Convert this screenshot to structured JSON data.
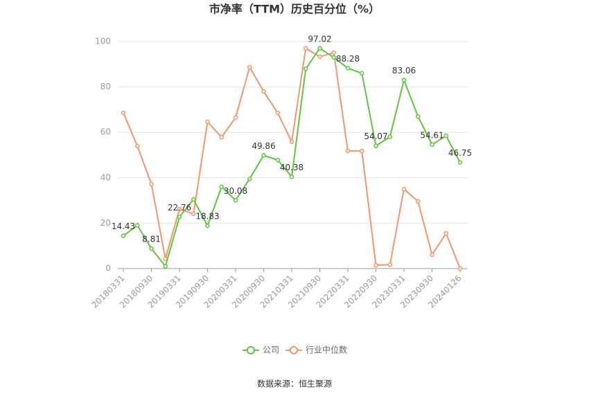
{
  "chart_data": {
    "type": "line",
    "title": "市净率（TTM）历史百分位（%）",
    "source": "数据来源：恒生聚源",
    "categories": [
      "20180331",
      null,
      "20180930",
      null,
      "20190331",
      null,
      "20190930",
      null,
      "20200331",
      null,
      "20200930",
      null,
      "20210331",
      null,
      "20210930",
      null,
      "20220331",
      null,
      "20220930",
      null,
      "20230331",
      null,
      "20230930",
      null,
      "20240126"
    ],
    "series": [
      {
        "name": "公司",
        "color": "#5cc73b",
        "values": [
          14.43,
          19,
          8.81,
          1,
          22.76,
          30.5,
          18.83,
          36,
          30.08,
          39.5,
          49.86,
          47.8,
          40.38,
          88,
          97.02,
          93,
          88.28,
          86,
          54.07,
          58,
          83.06,
          67,
          54.61,
          58.5,
          46.75
        ],
        "value_labels": [
          "14.43",
          null,
          "8.81",
          null,
          "22.76",
          null,
          "18.83",
          null,
          "30.08",
          null,
          "49.86",
          null,
          "40.38",
          null,
          "97.02",
          null,
          "88.28",
          null,
          "54.07",
          null,
          "83.06",
          null,
          "54.61",
          null,
          "46.75"
        ]
      },
      {
        "name": "行业中位数",
        "color": "#f4956a",
        "values": [
          68.6,
          54,
          37.2,
          4.3,
          26.2,
          24.1,
          64.6,
          57.9,
          66.5,
          88.7,
          78,
          68.6,
          55.8,
          97,
          93.3,
          95.1,
          51.8,
          51.8,
          1.5,
          1.7,
          35,
          29.6,
          6.1,
          15.5,
          0
        ]
      }
    ],
    "ylim": [
      0,
      100
    ],
    "yticks": [
      0,
      20,
      40,
      60,
      80,
      100
    ],
    "grid": true,
    "legend": "bottom"
  }
}
